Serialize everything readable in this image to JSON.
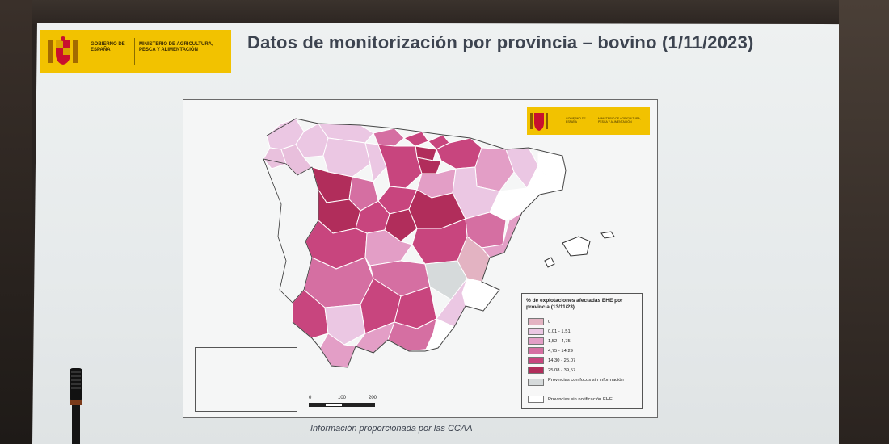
{
  "slide": {
    "title": "Datos de monitorización por provincia – bovino (1/11/2023)",
    "footer": "Información proporcionada por las CCAA",
    "banner": {
      "gobierno": "GOBIERNO DE ESPAÑA",
      "ministerio": "MINISTERIO DE AGRICULTURA, PESCA Y ALIMENTACIÓN"
    }
  },
  "map": {
    "mini_banner": {
      "gobierno": "GOBIERNO DE ESPAÑA",
      "ministerio": "MINISTERIO DE AGRICULTURA, PESCA Y ALIMENTACIÓN"
    },
    "legend": {
      "title": "% de explotaciones afectadas EHE por provincia (13/11/23)",
      "items": [
        {
          "label": "0",
          "color": "#e3b3c2"
        },
        {
          "label": "0,01 - 1,51",
          "color": "#ebc7e3"
        },
        {
          "label": "1,52 - 4,75",
          "color": "#e39ec6"
        },
        {
          "label": "4,75 - 14,29",
          "color": "#d56fa2"
        },
        {
          "label": "14,30 - 25,07",
          "color": "#c8457e"
        },
        {
          "label": "25,08 - 39,57",
          "color": "#b12d5b"
        },
        {
          "label": "Provincias con focos sin información",
          "color": "#d6dadb"
        },
        {
          "label": "Provincias sin notificación EHE",
          "color": "#ffffff"
        }
      ]
    },
    "scale": {
      "t0": "0",
      "t1": "100",
      "t2": "200"
    }
  },
  "colors": {
    "accent_yellow": "#f2c200",
    "title_text": "#3d4450"
  }
}
